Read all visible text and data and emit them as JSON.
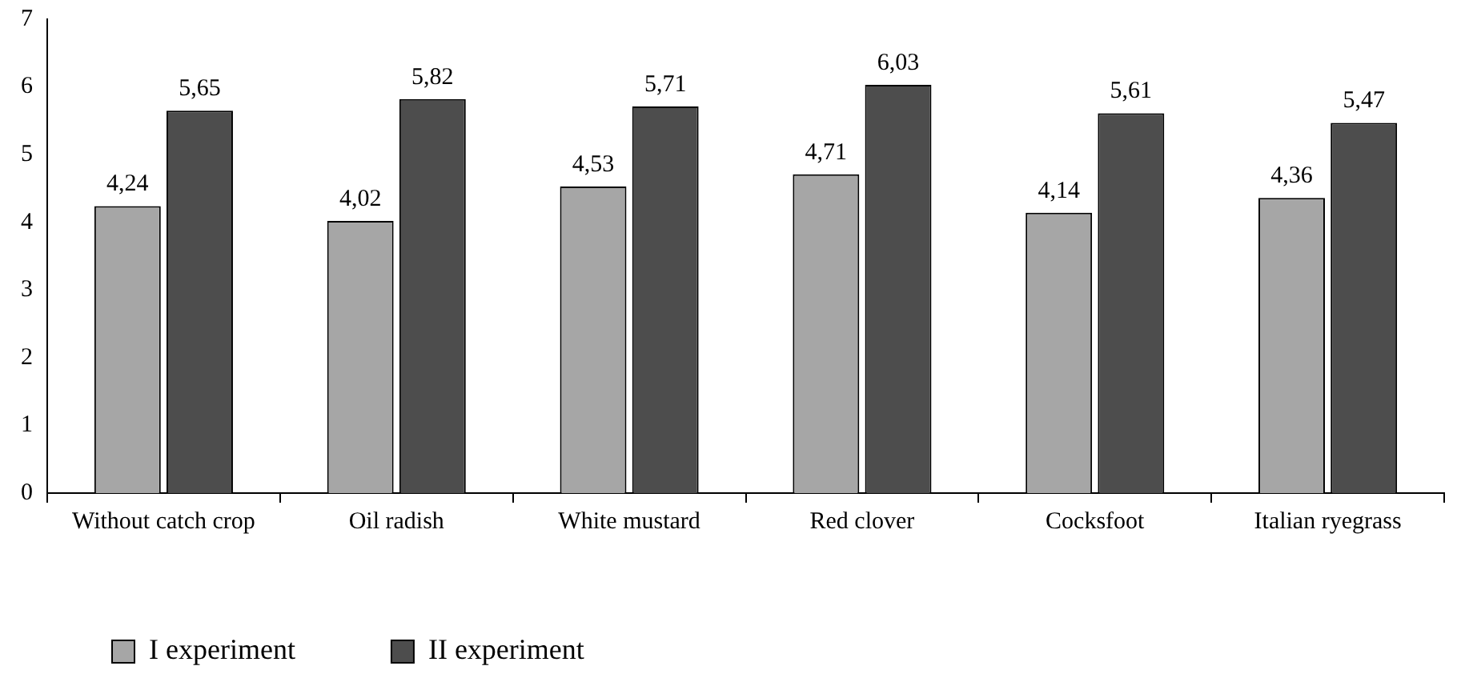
{
  "chart_data": {
    "type": "bar",
    "categories": [
      "Without catch crop",
      "Oil radish",
      "White mustard",
      "Red clover",
      "Cocksfoot",
      "Italian ryegrass"
    ],
    "series": [
      {
        "name": "I experiment",
        "color": "#a6a6a6",
        "values": [
          4.24,
          4.02,
          4.53,
          4.71,
          4.14,
          4.36
        ],
        "value_labels": [
          "4,24",
          "4,02",
          "4,53",
          "4,71",
          "4,14",
          "4,36"
        ]
      },
      {
        "name": "II experiment",
        "color": "#4d4d4d",
        "values": [
          5.65,
          5.82,
          5.71,
          6.03,
          5.61,
          5.47
        ],
        "value_labels": [
          "5,65",
          "5,82",
          "5,71",
          "6,03",
          "5,61",
          "5,47"
        ]
      }
    ],
    "ylim": [
      0,
      7
    ],
    "yticks": [
      0,
      1,
      2,
      3,
      4,
      5,
      6,
      7
    ],
    "grid": false,
    "legend": "bottom left"
  }
}
